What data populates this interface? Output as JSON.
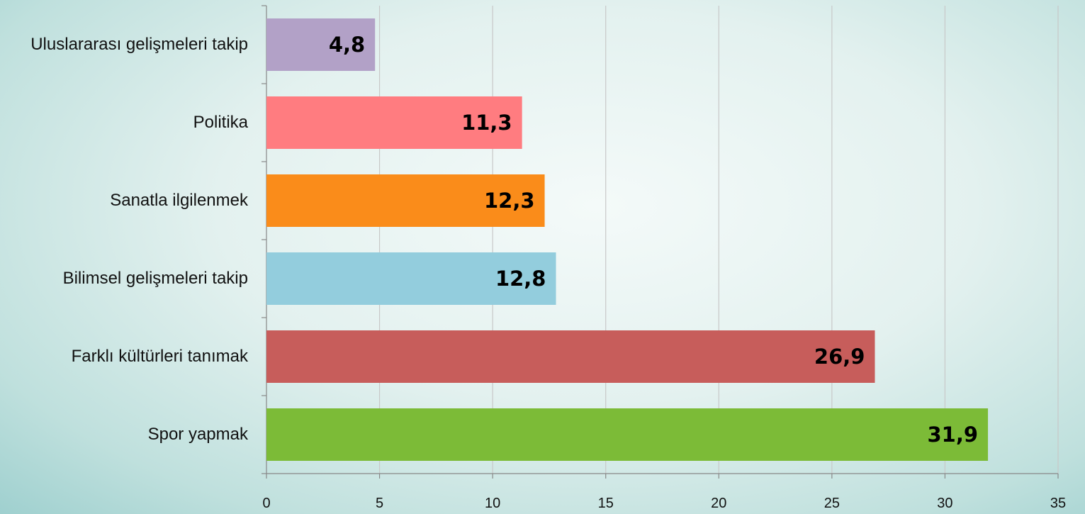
{
  "chart_data": {
    "type": "barh",
    "categories": [
      "Uluslararası gelişmeleri takip",
      "Politika",
      "Sanatla ilgilenmek",
      "Bilimsel gelişmeleri takip",
      "Farklı kültürleri tanımak",
      "Spor yapmak"
    ],
    "values": [
      4.8,
      11.3,
      12.3,
      12.8,
      26.9,
      31.9
    ],
    "value_labels": [
      "4,8",
      "11,3",
      "12,3",
      "12,8",
      "26,9",
      "31,9"
    ],
    "colors": [
      "#b2a1c7",
      "#ff7c80",
      "#fa8c1a",
      "#93cddd",
      "#c75d5b",
      "#7cbb37"
    ],
    "xlim": [
      0,
      35
    ],
    "xticks": [
      0,
      5,
      10,
      15,
      20,
      25,
      30,
      35
    ],
    "grid": true
  }
}
